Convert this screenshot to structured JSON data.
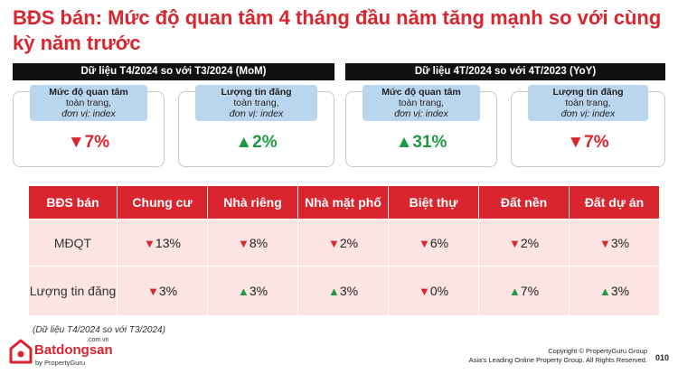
{
  "title": "BĐS bán: Mức độ quan tâm 4 tháng đầu năm tăng mạnh so với cùng kỳ năm trước",
  "sections": [
    {
      "header": "Dữ liệu T4/2024 so với T3/2024 (MoM)",
      "cards": [
        {
          "title": "Mức độ quan tâm",
          "scope": "toàn trang,",
          "unit": "đơn vị: index",
          "value": "▼7%",
          "direction": "down"
        },
        {
          "title": "Lượng tin đăng",
          "scope": "toàn trang,",
          "unit": "đơn vị: index",
          "value": "▲2%",
          "direction": "up"
        }
      ]
    },
    {
      "header": "Dữ liệu 4T/2024 so với 4T/2023 (YoY)",
      "cards": [
        {
          "title": "Mức độ quan tâm",
          "scope": "toàn trang,",
          "unit": "đơn vị: index",
          "value": "▲31%",
          "direction": "up"
        },
        {
          "title": "Lượng tin đăng",
          "scope": "toàn trang,",
          "unit": "đơn vị: index",
          "value": "▼7%",
          "direction": "down"
        }
      ]
    }
  ],
  "table": {
    "headers": [
      "BĐS bán",
      "Chung cư",
      "Nhà riêng",
      "Nhà mặt phố",
      "Biệt thự",
      "Đất nền",
      "Đất dự án"
    ],
    "rows": [
      {
        "label": "MĐQT",
        "cells": [
          {
            "arrow": "▼",
            "value": "13%",
            "direction": "down"
          },
          {
            "arrow": "▼",
            "value": "8%",
            "direction": "down"
          },
          {
            "arrow": "▼",
            "value": "2%",
            "direction": "down"
          },
          {
            "arrow": "▼",
            "value": "6%",
            "direction": "down"
          },
          {
            "arrow": "▼",
            "value": "2%",
            "direction": "down"
          },
          {
            "arrow": "▼",
            "value": "3%",
            "direction": "down"
          }
        ]
      },
      {
        "label": "Lượng tin đăng",
        "cells": [
          {
            "arrow": "▼",
            "value": "3%",
            "direction": "down"
          },
          {
            "arrow": "▲",
            "value": "3%",
            "direction": "up"
          },
          {
            "arrow": "▲",
            "value": "3%",
            "direction": "up"
          },
          {
            "arrow": "▼",
            "value": "0%",
            "direction": "down"
          },
          {
            "arrow": "▲",
            "value": "7%",
            "direction": "up"
          },
          {
            "arrow": "▲",
            "value": "3%",
            "direction": "up"
          }
        ]
      }
    ]
  },
  "note": "(Dữ liệu T4/2024 so với T3/2024)",
  "logo": {
    "com": ".com.vn",
    "name": "Batdongsan",
    "by": "by PropertyGuru"
  },
  "copyright": {
    "line1": "Copyright © PropertyGuru Group",
    "line2": "Asia's Leading Online Property Group. All Rights Reserved."
  },
  "page_number": "010",
  "colors": {
    "accent_red": "#d9262e",
    "up_green": "#1e9a43",
    "card_label_bg": "#b9d6ee",
    "table_cell_bg": "#fce4e3"
  }
}
